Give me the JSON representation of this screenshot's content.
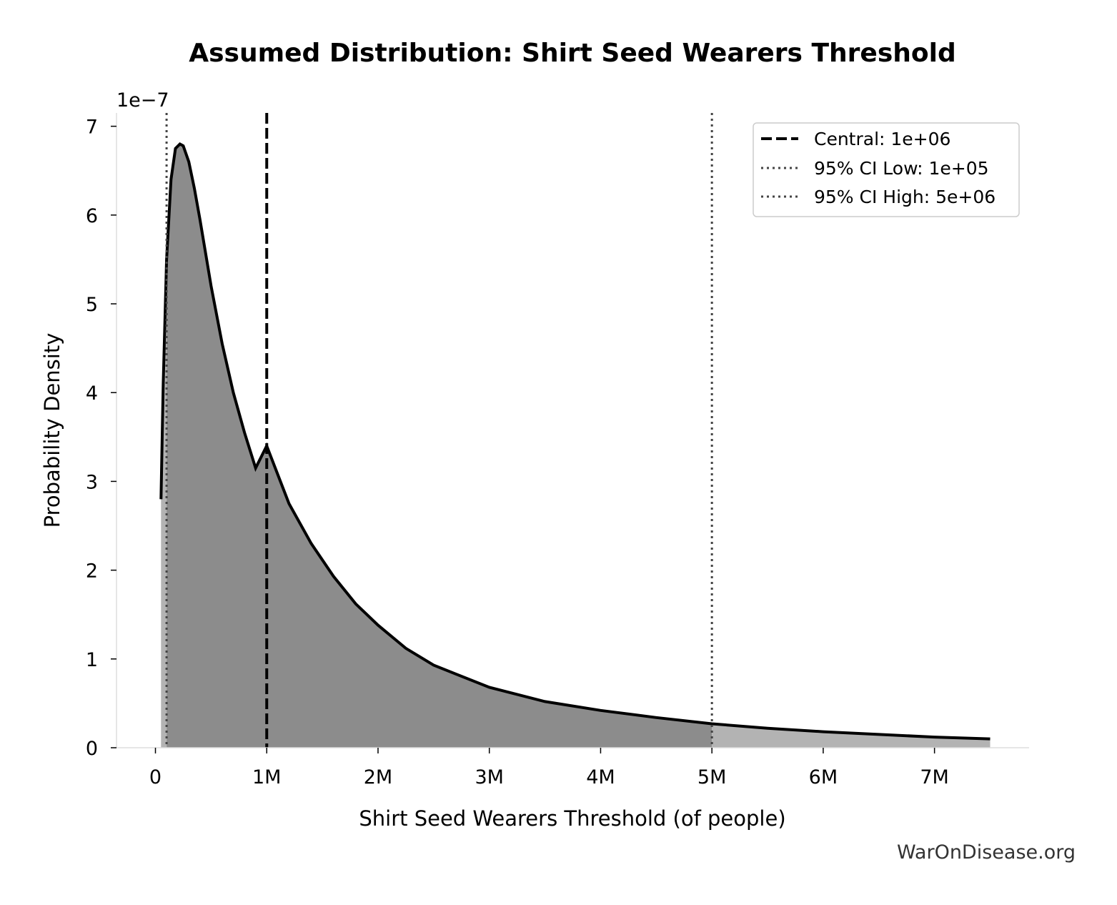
{
  "chart_data": {
    "type": "area",
    "title": "Assumed Distribution: Shirt Seed Wearers Threshold",
    "xlabel": "Shirt Seed Wearers Threshold (of people)",
    "ylabel": "Probability Density",
    "y_offset_text": "1e−7",
    "xlim": [
      -350000,
      7850000
    ],
    "ylim": [
      0,
      7.15
    ],
    "x_scale": "linear",
    "y_multiplier": 1e-07,
    "x_ticks": [
      {
        "value": 0,
        "label": "0"
      },
      {
        "value": 1000000,
        "label": "1M"
      },
      {
        "value": 2000000,
        "label": "2M"
      },
      {
        "value": 3000000,
        "label": "3M"
      },
      {
        "value": 4000000,
        "label": "4M"
      },
      {
        "value": 5000000,
        "label": "5M"
      },
      {
        "value": 6000000,
        "label": "6M"
      },
      {
        "value": 7000000,
        "label": "7M"
      }
    ],
    "y_ticks": [
      {
        "value": 0,
        "label": "0"
      },
      {
        "value": 1,
        "label": "1"
      },
      {
        "value": 2,
        "label": "2"
      },
      {
        "value": 3,
        "label": "3"
      },
      {
        "value": 4,
        "label": "4"
      },
      {
        "value": 5,
        "label": "5"
      },
      {
        "value": 6,
        "label": "6"
      },
      {
        "value": 7,
        "label": "7"
      }
    ],
    "series": [
      {
        "name": "",
        "color": "#000000",
        "fill_inside_ci": "#8c8c8c",
        "fill_outside_ci": "#b3b3b3",
        "x": [
          50000,
          70000,
          100000,
          140000,
          180000,
          220000,
          250000,
          300000,
          350000,
          400000,
          500000,
          600000,
          700000,
          800000,
          900000,
          1000000,
          1200000,
          1400000,
          1600000,
          1800000,
          2000000,
          2250000,
          2500000,
          3000000,
          3500000,
          4000000,
          4500000,
          5000000,
          5500000,
          6000000,
          6500000,
          7000000,
          7500000
        ],
        "y": [
          2.8,
          4.1,
          5.5,
          6.4,
          6.75,
          6.8,
          6.78,
          6.6,
          6.3,
          5.95,
          5.2,
          4.55,
          4.0,
          3.55,
          3.15,
          3.4,
          2.75,
          2.3,
          1.93,
          1.62,
          1.38,
          1.12,
          0.93,
          0.68,
          0.52,
          0.42,
          0.34,
          0.27,
          0.22,
          0.18,
          0.15,
          0.12,
          0.1
        ]
      }
    ],
    "vlines": [
      {
        "label": "Central: 1e+06",
        "x": 1000000,
        "style": "dashed",
        "color": "#000000"
      },
      {
        "label": "95% CI Low: 1e+05",
        "x": 100000,
        "style": "dotted",
        "color": "#444444"
      },
      {
        "label": "95% CI High: 5e+06",
        "x": 5000000,
        "style": "dotted",
        "color": "#444444"
      }
    ],
    "legend_placement": "top-right",
    "grid": false
  },
  "watermark": "WarOnDisease.org"
}
